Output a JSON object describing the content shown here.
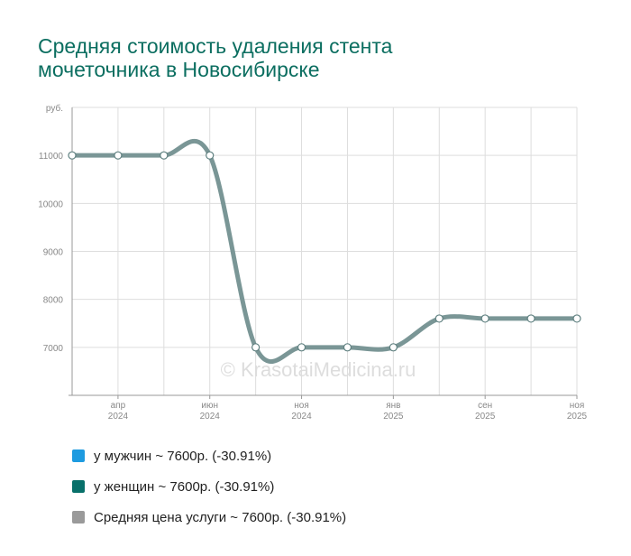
{
  "title": "Средняя стоимость удаления стента мочеточника в Новосибирске",
  "watermark": "© KrasotaiMedicina.ru",
  "chart_data": {
    "type": "line",
    "ylabel": "руб.",
    "ylim": [
      6000,
      12000
    ],
    "yticks": [
      7000,
      8000,
      9000,
      10000,
      11000
    ],
    "x_labels": [
      {
        "index": 1,
        "month": "апр",
        "year": "2024"
      },
      {
        "index": 3,
        "month": "июн",
        "year": "2024"
      },
      {
        "index": 5,
        "month": "ноя",
        "year": "2024"
      },
      {
        "index": 7,
        "month": "янв",
        "year": "2025"
      },
      {
        "index": 9,
        "month": "сен",
        "year": "2025"
      },
      {
        "index": 11,
        "month": "ноя",
        "year": "2025"
      }
    ],
    "series": [
      {
        "name": "Средняя цена услуги",
        "color": "#7a9696",
        "values": [
          11000,
          11000,
          11000,
          11000,
          7000,
          7000,
          7000,
          7000,
          7600,
          7600,
          7600,
          7600
        ]
      }
    ],
    "grid": true
  },
  "legend": [
    {
      "label": "у мужчин ~ 7600р. (-30.91%)",
      "color": "#1e9be0"
    },
    {
      "label": "у женщин ~ 7600р. (-30.91%)",
      "color": "#08706a"
    },
    {
      "label": "Средняя цена услуги ~ 7600р. (-30.91%)",
      "color": "#9a9a9a"
    }
  ]
}
